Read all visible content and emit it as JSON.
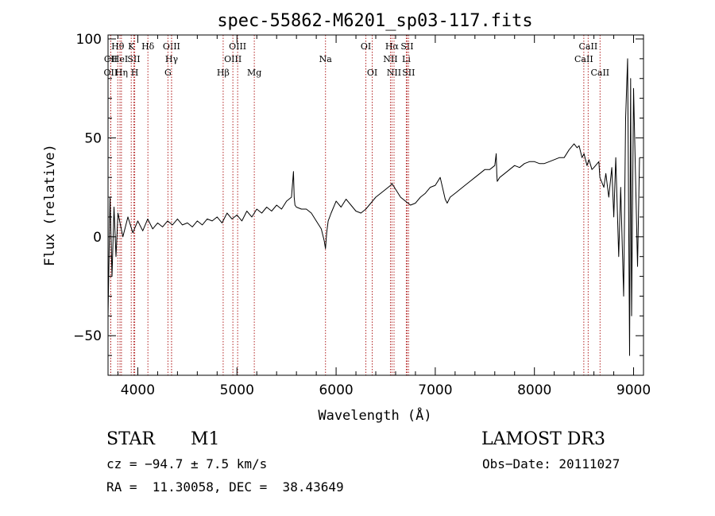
{
  "chart_data": {
    "type": "line",
    "title": "spec-55862-M6201_sp03-117.fits",
    "xlabel": "Wavelength (Å)",
    "ylabel": "Flux (relative)",
    "xlim": [
      3700,
      9100
    ],
    "ylim": [
      -70,
      102
    ],
    "xticks": [
      4000,
      5000,
      6000,
      7000,
      8000,
      9000
    ],
    "yticks": [
      -50,
      0,
      50,
      100
    ],
    "series": [
      {
        "name": "flux",
        "x": [
          3700,
          3720,
          3740,
          3760,
          3780,
          3800,
          3850,
          3900,
          3950,
          4000,
          4050,
          4100,
          4150,
          4200,
          4250,
          4300,
          4350,
          4400,
          4450,
          4500,
          4550,
          4600,
          4650,
          4700,
          4750,
          4800,
          4850,
          4900,
          4950,
          5000,
          5050,
          5100,
          5150,
          5200,
          5250,
          5300,
          5350,
          5400,
          5450,
          5500,
          5550,
          5570,
          5577,
          5585,
          5600,
          5650,
          5700,
          5750,
          5800,
          5850,
          5880,
          5893,
          5905,
          5920,
          5950,
          6000,
          6050,
          6100,
          6150,
          6200,
          6250,
          6300,
          6350,
          6400,
          6450,
          6500,
          6550,
          6563,
          6600,
          6650,
          6700,
          6750,
          6800,
          6850,
          6900,
          6950,
          7000,
          7050,
          7100,
          7120,
          7150,
          7200,
          7250,
          7300,
          7350,
          7400,
          7450,
          7500,
          7550,
          7600,
          7615,
          7620,
          7625,
          7650,
          7700,
          7750,
          7800,
          7850,
          7900,
          7950,
          8000,
          8050,
          8100,
          8150,
          8200,
          8250,
          8300,
          8350,
          8400,
          8430,
          8450,
          8480,
          8500,
          8530,
          8550,
          8580,
          8600,
          8650,
          8660,
          8700,
          8720,
          8750,
          8780,
          8800,
          8820,
          8850,
          8870,
          8900,
          8920,
          8940,
          8960,
          8970,
          8980,
          9000,
          9020,
          9040,
          9060
        ],
        "values": [
          -40,
          20,
          -20,
          15,
          -10,
          12,
          0,
          10,
          2,
          8,
          3,
          9,
          4,
          7,
          5,
          8,
          6,
          9,
          6,
          7,
          5,
          8,
          6,
          9,
          8,
          10,
          7,
          12,
          9,
          11,
          8,
          13,
          10,
          14,
          12,
          15,
          13,
          16,
          14,
          18,
          20,
          33,
          20,
          16,
          15,
          14,
          14,
          12,
          8,
          4,
          -2,
          -6,
          2,
          8,
          12,
          18,
          15,
          19,
          16,
          13,
          12,
          14,
          17,
          20,
          22,
          24,
          26,
          27,
          24,
          20,
          18,
          16,
          17,
          20,
          22,
          25,
          26,
          30,
          19,
          17,
          20,
          22,
          24,
          26,
          28,
          30,
          32,
          34,
          34,
          36,
          42,
          32,
          28,
          30,
          32,
          34,
          36,
          35,
          37,
          38,
          38,
          37,
          37,
          38,
          39,
          40,
          40,
          44,
          47,
          45,
          46,
          40,
          42,
          36,
          39,
          34,
          35,
          38,
          30,
          25,
          32,
          20,
          35,
          10,
          40,
          -10,
          25,
          -30,
          60,
          90,
          -60,
          80,
          -40,
          75,
          30,
          -15,
          40
        ]
      }
    ],
    "lines": [
      {
        "label": "CII",
        "wl": 3727,
        "row": 1
      },
      {
        "label": "OII",
        "wl": 3727,
        "row": 2
      },
      {
        "label": "Hθ",
        "wl": 3798,
        "row": 0
      },
      {
        "label": "HeI",
        "wl": 3820,
        "row": 1
      },
      {
        "label": "Hη",
        "wl": 3835,
        "row": 2
      },
      {
        "label": "K",
        "wl": 3934,
        "row": 0
      },
      {
        "label": "SII",
        "wl": 3960,
        "row": 1
      },
      {
        "label": "H",
        "wl": 3969,
        "row": 2
      },
      {
        "label": "Hδ",
        "wl": 4102,
        "row": 0
      },
      {
        "label": "OIII",
        "wl": 4340,
        "row": 0
      },
      {
        "label": "Hγ",
        "wl": 4341,
        "row": 1
      },
      {
        "label": "G",
        "wl": 4304,
        "row": 2
      },
      {
        "label": "Hβ",
        "wl": 4861,
        "row": 2
      },
      {
        "label": "OIII",
        "wl": 4959,
        "row": 1
      },
      {
        "label": "OIII",
        "wl": 5007,
        "row": 0
      },
      {
        "label": "Mg",
        "wl": 5175,
        "row": 2
      },
      {
        "label": "Na",
        "wl": 5893,
        "row": 1
      },
      {
        "label": "OI",
        "wl": 6300,
        "row": 0
      },
      {
        "label": "OI",
        "wl": 6364,
        "row": 2
      },
      {
        "label": "Hα",
        "wl": 6563,
        "row": 0
      },
      {
        "label": "NII",
        "wl": 6548,
        "row": 1
      },
      {
        "label": "NII",
        "wl": 6584,
        "row": 2
      },
      {
        "label": "SII",
        "wl": 6716,
        "row": 0
      },
      {
        "label": "Li",
        "wl": 6708,
        "row": 1
      },
      {
        "label": "SII",
        "wl": 6731,
        "row": 2
      },
      {
        "label": "CaII",
        "wl": 8542,
        "row": 0
      },
      {
        "label": "CaII",
        "wl": 8498,
        "row": 1
      },
      {
        "label": "CaII",
        "wl": 8662,
        "row": 2
      }
    ]
  },
  "info": {
    "class": "STAR",
    "subclass": "M1",
    "survey": "LAMOST DR3",
    "cz": "cz = −94.7 ± 7.5 km/s",
    "obs_date": "Obs−Date: 20111027",
    "coords": "RA =  11.30058, DEC =  38.43649"
  },
  "colors": {
    "line_marker": "#b22222",
    "spectrum": "#000000"
  }
}
